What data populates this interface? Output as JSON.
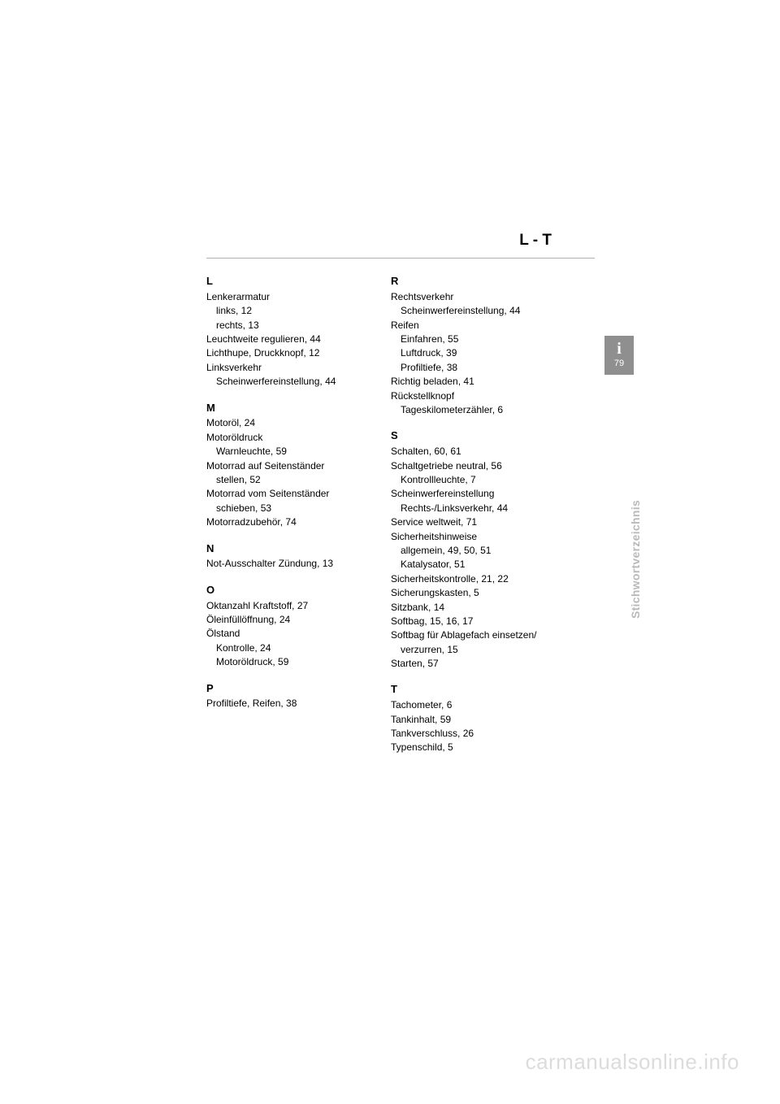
{
  "header": {
    "range": "L - T"
  },
  "tab": {
    "icon": "i",
    "page": "79"
  },
  "sideLabel": "Stichwortverzeichnis",
  "watermark": "carmanualsonline.info",
  "col1": [
    {
      "letter": "L",
      "entries": [
        {
          "text": "Lenkerarmatur"
        },
        {
          "text": "links,  12",
          "sub": true
        },
        {
          "text": "rechts,  13",
          "sub": true
        },
        {
          "text": "Leuchtweite regulieren,  44"
        },
        {
          "text": "Lichthupe, Druckknopf,  12"
        },
        {
          "text": "Linksverkehr"
        },
        {
          "text": "Scheinwerfereinstellung,  44",
          "sub": true
        }
      ]
    },
    {
      "letter": "M",
      "entries": [
        {
          "text": "Motoröl,  24"
        },
        {
          "text": "Motoröldruck"
        },
        {
          "text": "Warnleuchte,  59",
          "sub": true
        },
        {
          "text": "Motorrad auf Seitenständer"
        },
        {
          "text": "stellen,  52",
          "sub": true
        },
        {
          "text": "Motorrad vom Seitenständer"
        },
        {
          "text": "schieben,  53",
          "sub": true
        },
        {
          "text": "Motorradzubehör,  74"
        }
      ]
    },
    {
      "letter": "N",
      "entries": [
        {
          "text": "Not-Ausschalter Zündung,  13"
        }
      ]
    },
    {
      "letter": "O",
      "entries": [
        {
          "text": "Oktanzahl Kraftstoff,  27"
        },
        {
          "text": "Öleinfüllöffnung,  24"
        },
        {
          "text": "Ölstand"
        },
        {
          "text": "Kontrolle,  24",
          "sub": true
        },
        {
          "text": "Motoröldruck,  59",
          "sub": true
        }
      ]
    },
    {
      "letter": "P",
      "entries": [
        {
          "text": "Profiltiefe, Reifen,  38"
        }
      ]
    }
  ],
  "col2": [
    {
      "letter": "R",
      "entries": [
        {
          "text": "Rechtsverkehr"
        },
        {
          "text": "Scheinwerfereinstellung,  44",
          "sub": true
        },
        {
          "text": "Reifen"
        },
        {
          "text": "Einfahren,  55",
          "sub": true
        },
        {
          "text": "Luftdruck,  39",
          "sub": true
        },
        {
          "text": "Profiltiefe,  38",
          "sub": true
        },
        {
          "text": "Richtig beladen,  41"
        },
        {
          "text": "Rückstellknopf"
        },
        {
          "text": "Tageskilometerzähler,  6",
          "sub": true
        }
      ]
    },
    {
      "letter": "S",
      "entries": [
        {
          "text": "Schalten,  60,  61"
        },
        {
          "text": "Schaltgetriebe neutral,  56"
        },
        {
          "text": "Kontrollleuchte,  7",
          "sub": true
        },
        {
          "text": "Scheinwerfereinstellung"
        },
        {
          "text": "Rechts-/Linksverkehr,  44",
          "sub": true
        },
        {
          "text": "Service weltweit,  71"
        },
        {
          "text": "Sicherheitshinweise"
        },
        {
          "text": "allgemein,  49,  50,  51",
          "sub": true
        },
        {
          "text": "Katalysator,  51",
          "sub": true
        },
        {
          "text": "Sicherheitskontrolle,  21,  22"
        },
        {
          "text": "Sicherungskasten,  5"
        },
        {
          "text": "Sitzbank,  14"
        },
        {
          "text": "Softbag,  15,  16,  17"
        },
        {
          "text": "Softbag für Ablagefach einsetzen/"
        },
        {
          "text": "verzurren,  15",
          "sub": true
        },
        {
          "text": "Starten,  57"
        }
      ]
    },
    {
      "letter": "T",
      "entries": [
        {
          "text": "Tachometer,  6"
        },
        {
          "text": "Tankinhalt,  59"
        },
        {
          "text": "Tankverschluss,  26"
        },
        {
          "text": "Typenschild,  5"
        }
      ]
    }
  ]
}
